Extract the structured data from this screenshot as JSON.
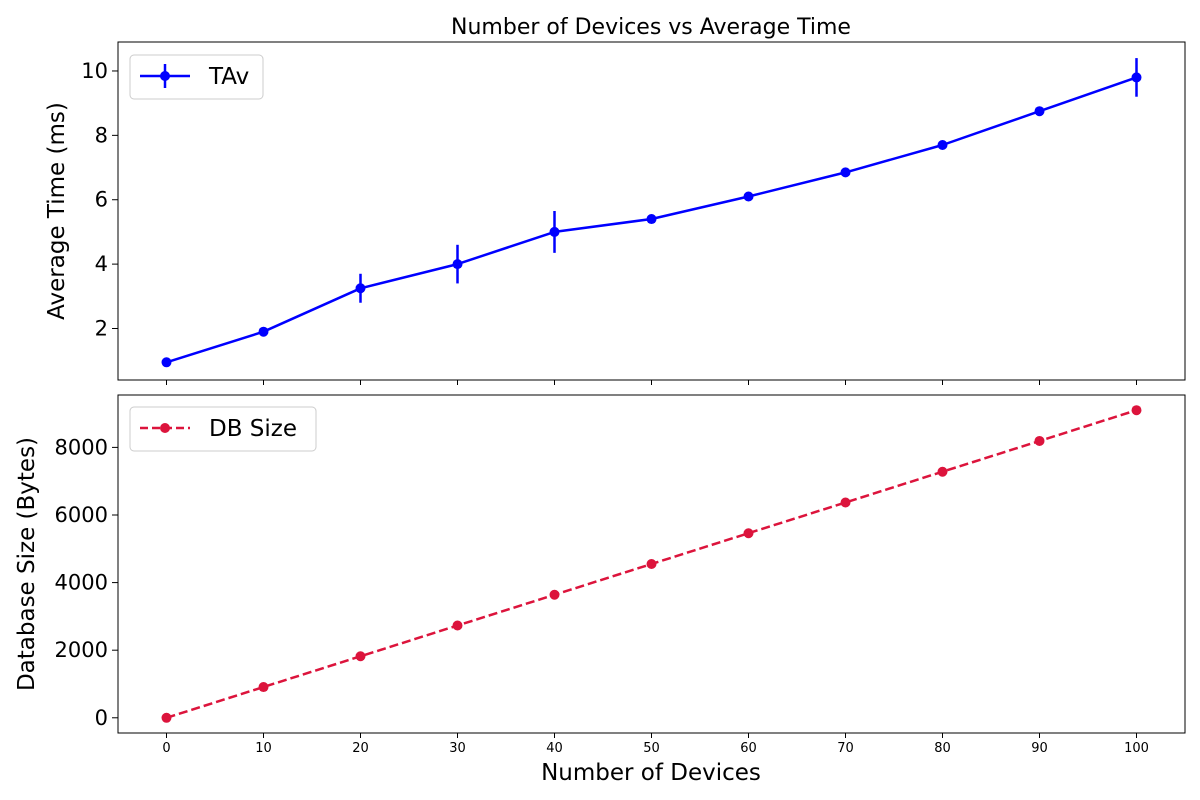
{
  "chart_data": [
    {
      "type": "line",
      "title": "Number of Devices vs Average Time",
      "xlabel": "",
      "ylabel": "Average Time (ms)",
      "x": [
        0,
        10,
        20,
        30,
        40,
        50,
        60,
        70,
        80,
        90,
        100
      ],
      "xlim": [
        -5,
        105
      ],
      "ylim": [
        0.4,
        10.9
      ],
      "yticks": [
        2,
        4,
        6,
        8,
        10
      ],
      "grid": false,
      "legend_position": "top-left",
      "series": [
        {
          "name": "TAv",
          "color": "#0000ff",
          "line_style": "solid",
          "marker": "circle",
          "values": [
            0.95,
            1.9,
            3.25,
            4.0,
            5.0,
            5.4,
            6.1,
            6.85,
            7.7,
            8.75,
            9.8
          ],
          "errors": [
            0,
            0,
            0.45,
            0.6,
            0.65,
            0,
            0,
            0,
            0,
            0,
            0.6
          ]
        }
      ]
    },
    {
      "type": "line",
      "title": "",
      "xlabel": "Number of Devices",
      "ylabel": "Database Size (Bytes)",
      "x": [
        0,
        10,
        20,
        30,
        40,
        50,
        60,
        70,
        80,
        90,
        100
      ],
      "xticks": [
        0,
        10,
        20,
        30,
        40,
        50,
        60,
        70,
        80,
        90,
        100
      ],
      "xlim": [
        -5,
        105
      ],
      "ylim": [
        -450,
        9550
      ],
      "yticks": [
        0,
        2000,
        4000,
        6000,
        8000
      ],
      "grid": false,
      "legend_position": "top-left",
      "series": [
        {
          "name": "DB Size",
          "color": "#dc143c",
          "line_style": "dashed",
          "marker": "circle",
          "values": [
            0,
            910,
            1820,
            2730,
            3640,
            4550,
            5460,
            6370,
            7280,
            8190,
            9100
          ]
        }
      ]
    }
  ]
}
